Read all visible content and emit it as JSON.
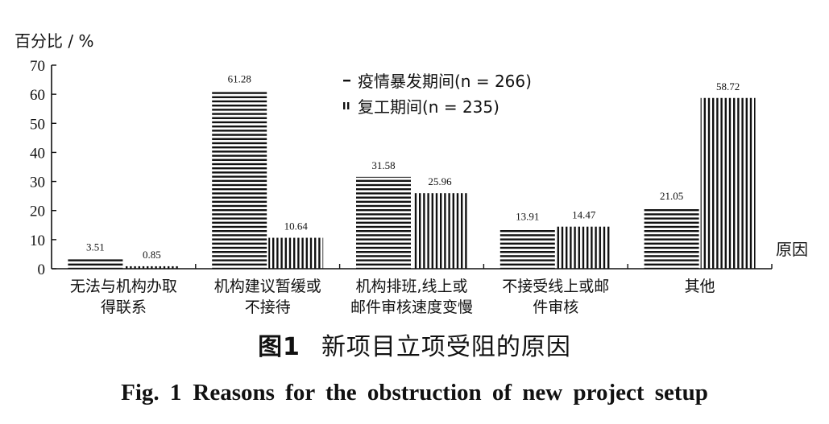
{
  "chart_data": {
    "type": "bar",
    "ylabel": "百分比 / %",
    "xlabel": "原因",
    "ylim": [
      0,
      70
    ],
    "yticks": [
      0,
      10,
      20,
      30,
      40,
      50,
      60,
      70
    ],
    "categories": [
      [
        "无法与机构办取",
        "得联系"
      ],
      [
        "机构建议暂缓或",
        "不接待"
      ],
      [
        "机构排班,线上或",
        "邮件审核速度变慢"
      ],
      [
        "不接受线上或邮",
        "件审核"
      ],
      [
        "其他"
      ]
    ],
    "series": [
      {
        "name": "疫情暴发期间",
        "n_label": "(n = 266)",
        "hatch": "horizontal",
        "values": [
          3.51,
          61.28,
          31.58,
          13.91,
          21.05
        ],
        "labels": [
          "3.51",
          "61.28",
          "31.58",
          "13.91",
          "21.05"
        ]
      },
      {
        "name": "复工期间",
        "n_label": "(n = 235)",
        "hatch": "vertical",
        "values": [
          0.85,
          10.64,
          25.96,
          14.47,
          58.72
        ],
        "labels": [
          "0.85",
          "10.64",
          "25.96",
          "14.47",
          "58.72"
        ]
      }
    ],
    "legend_position": "top-center",
    "grid": false
  },
  "caption": {
    "cn_num": "图1",
    "cn_title": "新项目立项受阻的原因",
    "en_num": "Fig. 1",
    "en_title": "Reasons for the obstruction of new project setup"
  },
  "colors": {
    "ink": "#111111",
    "background": "#ffffff"
  }
}
